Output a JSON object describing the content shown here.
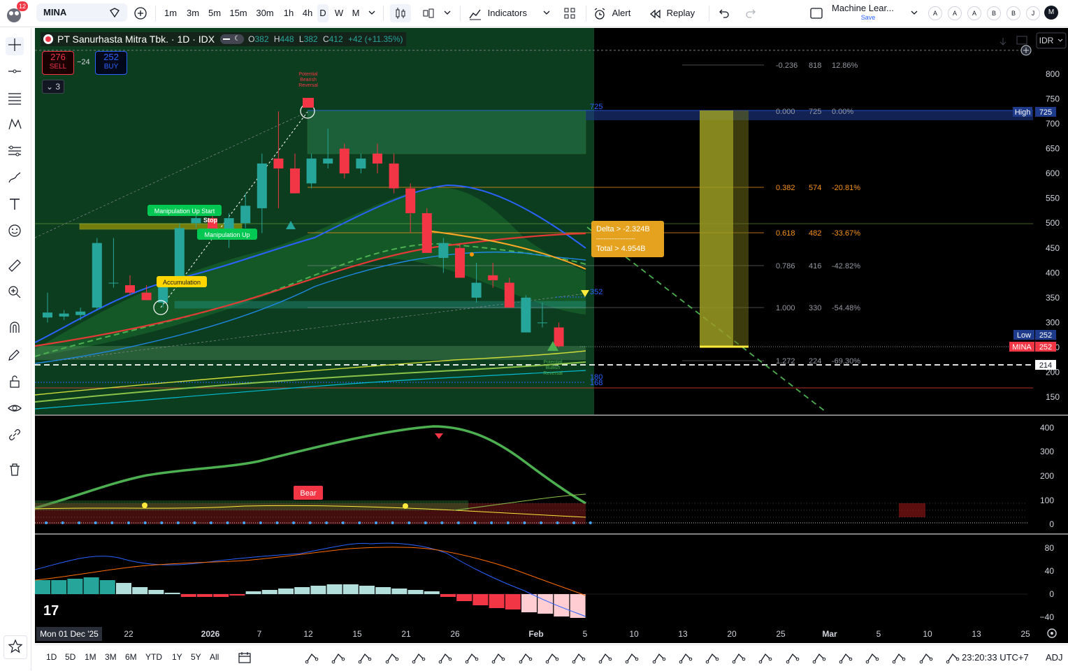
{
  "topbar": {
    "notification_count": "12",
    "symbol": "MINA",
    "intervals": [
      "1m",
      "3m",
      "5m",
      "15m",
      "30m",
      "1h",
      "4h",
      "D",
      "W",
      "M"
    ],
    "selected_interval": "D",
    "indicators_label": "Indicators",
    "alert_label": "Alert",
    "replay_label": "Replay",
    "layout_name": "Machine Lear...",
    "layout_save": "Save",
    "avatar_letters": [
      "A",
      "A",
      "A",
      "B",
      "B",
      "J"
    ],
    "user_initial": "M"
  },
  "legend": {
    "title": "PT Sanurhasta Mitra Tbk. · 1D · IDX",
    "o_label": "O",
    "o_value": "382",
    "h_label": "H",
    "h_value": "448",
    "l_label": "L",
    "l_value": "382",
    "c_label": "C",
    "c_value": "412",
    "change": "+42 (+11.35%)",
    "sell_price": "276",
    "sell_label": "SELL",
    "spread": "−24",
    "buy_price": "252",
    "buy_label": "BUY",
    "indicators_collapsed": "3",
    "currency": "IDR"
  },
  "annotations": {
    "potential_bearish": [
      "Potential",
      "Bearish",
      "Reversal"
    ],
    "potential_bullish": [
      "Potential",
      "Bullish",
      "Reversal"
    ],
    "manipulation_up_start": "Manipulation Up Start",
    "stop": "Stop",
    "manipulation_up": "Manipulation Up",
    "accumulation": "Accumulation",
    "delta": "Delta > -2.324B",
    "dashes": "---------------------",
    "total": "Total > 4.954B",
    "bear": "Bear",
    "zone_top": "725",
    "zone_mid": "352",
    "level_180": "180",
    "level_168": "168"
  },
  "fib_levels": [
    {
      "ratio": "-0.236",
      "price": "818",
      "pct": "12.86%",
      "color": "#9598a1"
    },
    {
      "ratio": "0.000",
      "price": "725",
      "pct": "0.00%",
      "color": "#9598a1"
    },
    {
      "ratio": "0.382",
      "price": "574",
      "pct": "-20.81%",
      "color": "#f7931a"
    },
    {
      "ratio": "0.618",
      "price": "482",
      "pct": "-33.67%",
      "color": "#f7931a"
    },
    {
      "ratio": "0.786",
      "price": "416",
      "pct": "-42.82%",
      "color": "#9598a1"
    },
    {
      "ratio": "1.000",
      "price": "330",
      "pct": "-54.48%",
      "color": "#9598a1"
    },
    {
      "ratio": "1.272",
      "price": "224",
      "pct": "-69.30%",
      "color": "#9598a1"
    }
  ],
  "price_axis": {
    "ticks": [
      "800",
      "750",
      "700",
      "650",
      "600",
      "550",
      "500",
      "450",
      "400",
      "350",
      "300",
      "250",
      "200",
      "150"
    ],
    "high_label": "High",
    "high_value": "725",
    "low_label": "Low",
    "low_value": "252",
    "symbol_label": "MINA",
    "symbol_value": "252",
    "dashed_value": "214"
  },
  "pane2_axis": [
    "400",
    "300",
    "200",
    "100",
    "0"
  ],
  "pane3_axis": [
    "80",
    "40",
    "0",
    "−40"
  ],
  "time_axis": {
    "first": "Mon 01 Dec '25",
    "labels": [
      "22",
      "2026",
      "7",
      "12",
      "15",
      "21",
      "26",
      "Feb",
      "5",
      "10",
      "13",
      "20",
      "25",
      "Mar",
      "5",
      "10",
      "13",
      "25"
    ]
  },
  "chart_data": {
    "type": "candlestick",
    "title": "PT Sanurhasta Mitra Tbk. · 1D · IDX",
    "ylim": [
      130,
      860
    ],
    "last_close": 252,
    "candles": [
      {
        "o": 310,
        "h": 360,
        "l": 300,
        "c": 320
      },
      {
        "o": 312,
        "h": 325,
        "l": 305,
        "c": 318
      },
      {
        "o": 315,
        "h": 330,
        "l": 305,
        "c": 322
      },
      {
        "o": 330,
        "h": 470,
        "l": 325,
        "c": 460
      },
      {
        "o": 380,
        "h": 470,
        "l": 370,
        "c": 380
      },
      {
        "o": 375,
        "h": 395,
        "l": 355,
        "c": 360
      },
      {
        "o": 360,
        "h": 375,
        "l": 345,
        "c": 345
      },
      {
        "o": 340,
        "h": 390,
        "l": 330,
        "c": 380
      },
      {
        "o": 390,
        "h": 500,
        "l": 385,
        "c": 490
      },
      {
        "o": 500,
        "h": 530,
        "l": 490,
        "c": 510
      },
      {
        "o": 510,
        "h": 530,
        "l": 480,
        "c": 480
      },
      {
        "o": 480,
        "h": 520,
        "l": 450,
        "c": 510
      },
      {
        "o": 500,
        "h": 560,
        "l": 490,
        "c": 535
      },
      {
        "o": 530,
        "h": 640,
        "l": 480,
        "c": 620
      },
      {
        "o": 630,
        "h": 725,
        "l": 530,
        "c": 610
      },
      {
        "o": 610,
        "h": 640,
        "l": 560,
        "c": 560
      },
      {
        "o": 580,
        "h": 640,
        "l": 570,
        "c": 630
      },
      {
        "o": 620,
        "h": 690,
        "l": 610,
        "c": 630
      },
      {
        "o": 650,
        "h": 660,
        "l": 590,
        "c": 600
      },
      {
        "o": 610,
        "h": 640,
        "l": 600,
        "c": 630
      },
      {
        "o": 640,
        "h": 660,
        "l": 600,
        "c": 620
      },
      {
        "o": 620,
        "h": 640,
        "l": 560,
        "c": 570
      },
      {
        "o": 570,
        "h": 580,
        "l": 480,
        "c": 520
      },
      {
        "o": 520,
        "h": 530,
        "l": 440,
        "c": 440
      },
      {
        "o": 430,
        "h": 470,
        "l": 400,
        "c": 460
      },
      {
        "o": 450,
        "h": 460,
        "l": 390,
        "c": 390
      },
      {
        "o": 350,
        "h": 420,
        "l": 340,
        "c": 380
      },
      {
        "o": 395,
        "h": 420,
        "l": 370,
        "c": 385
      },
      {
        "o": 380,
        "h": 390,
        "l": 330,
        "c": 330
      },
      {
        "o": 280,
        "h": 355,
        "l": 280,
        "c": 350
      },
      {
        "o": 300,
        "h": 340,
        "l": 290,
        "c": 300
      },
      {
        "o": 290,
        "h": 300,
        "l": 250,
        "c": 252
      }
    ]
  },
  "bottombar": {
    "ranges": [
      "1D",
      "5D",
      "1M",
      "3M",
      "6M",
      "YTD",
      "1Y",
      "5Y",
      "All"
    ],
    "clock": "23:20:33 UTC+7",
    "adj": "ADJ"
  }
}
